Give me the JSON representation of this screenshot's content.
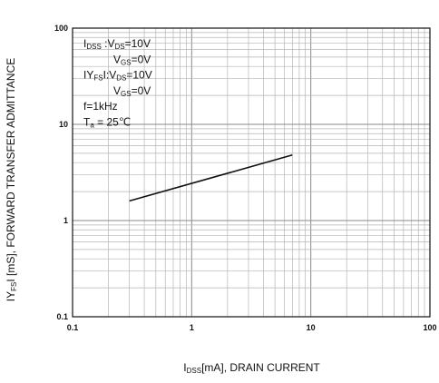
{
  "chart_data": {
    "type": "line",
    "title": "",
    "x_scale": "log",
    "y_scale": "log",
    "xlim": [
      0.1,
      100
    ],
    "ylim": [
      0.1,
      100
    ],
    "grid": true,
    "x_ticks": [
      "0.1",
      "1",
      "10",
      "100"
    ],
    "y_ticks": [
      "0.1",
      "1",
      "10",
      "100"
    ],
    "xlabel": {
      "prefix": "I",
      "sub": "DSS",
      "suffix": "[mA], DRAIN CURRENT"
    },
    "ylabel": {
      "prefix": "IY",
      "sub": "FS",
      "suffix": "I [mS], FORWARD TRANSFER ADMITTANCE"
    },
    "annotations": [
      {
        "a": "I",
        "b": "DSS",
        "c": " :V",
        "d": "DS",
        "e": "=10V"
      },
      {
        "a": "",
        "b": "",
        "c": "V",
        "d": "GS",
        "e": "=0V"
      },
      {
        "a": "IY",
        "b": "FS",
        "c": "I:V",
        "d": "DS",
        "e": "=10V"
      },
      {
        "a": "",
        "b": "",
        "c": "V",
        "d": "GS",
        "e": "=0V"
      },
      {
        "a": "f=1kHz",
        "b": "",
        "c": "",
        "d": "",
        "e": ""
      },
      {
        "a": "T",
        "b": "a",
        "c": " = 25℃",
        "d": "",
        "e": ""
      }
    ],
    "series": [
      {
        "x": [
          0.3,
          7
        ],
        "y": [
          1.6,
          4.8
        ]
      }
    ],
    "line_color": "#111111",
    "grid_major_color": "#8a8a8a",
    "grid_minor_color": "#b5b5b5"
  }
}
